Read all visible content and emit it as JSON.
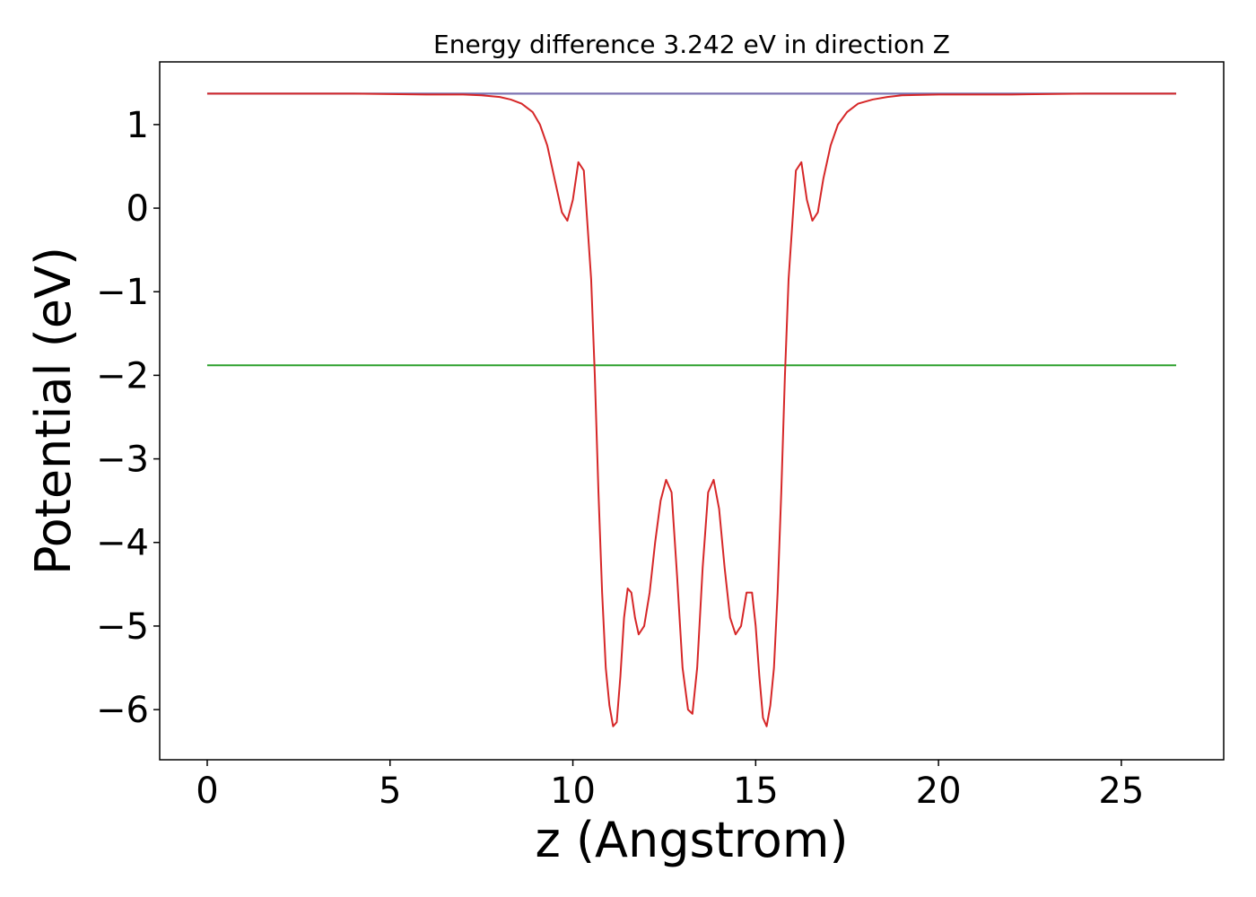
{
  "chart_data": {
    "type": "line",
    "title": "Energy difference 3.242 eV in direction Z",
    "xlabel": "z (Angstrom)",
    "ylabel": "Potential (eV)",
    "xlim": [
      -1.3,
      27.8
    ],
    "ylim": [
      -6.6,
      1.75
    ],
    "xticks": [
      0,
      5,
      10,
      15,
      20,
      25
    ],
    "xtick_labels": [
      "0",
      "5",
      "10",
      "15",
      "20",
      "25"
    ],
    "yticks": [
      1,
      0,
      -1,
      -2,
      -3,
      -4,
      -5,
      -6
    ],
    "ytick_labels": [
      "1",
      "0",
      "−1",
      "−2",
      "−3",
      "−4",
      "−5",
      "−6"
    ],
    "grid": false,
    "series": [
      {
        "color": "#1f77b4",
        "x": [
          0,
          26.5
        ],
        "y": [
          1.37,
          1.37
        ]
      },
      {
        "color": "#2ca02c",
        "x": [
          0,
          26.5
        ],
        "y": [
          -1.88,
          -1.88
        ]
      },
      {
        "color": "#7f6fb0",
        "x": [
          0,
          26.5
        ],
        "y": [
          1.37,
          1.37
        ]
      },
      {
        "color": "#d62728",
        "x": [
          0,
          2,
          4,
          6,
          7,
          7.5,
          8,
          8.3,
          8.6,
          8.9,
          9.1,
          9.3,
          9.5,
          9.7,
          9.85,
          10.0,
          10.15,
          10.3,
          10.4,
          10.5,
          10.6,
          10.7,
          10.8,
          10.9,
          11.0,
          11.1,
          11.2,
          11.3,
          11.4,
          11.5,
          11.6,
          11.7,
          11.8,
          11.95,
          12.1,
          12.25,
          12.4,
          12.55,
          12.7,
          12.85,
          13.0,
          13.15,
          13.27,
          13.4,
          13.55,
          13.7,
          13.85,
          14.0,
          14.15,
          14.3,
          14.45,
          14.6,
          14.75,
          14.9,
          15.0,
          15.1,
          15.2,
          15.3,
          15.4,
          15.5,
          15.6,
          15.7,
          15.8,
          15.9,
          16.0,
          16.1,
          16.25,
          16.4,
          16.55,
          16.7,
          16.85,
          17.05,
          17.25,
          17.5,
          17.8,
          18.2,
          18.6,
          19,
          20,
          22,
          24,
          26.5
        ],
        "y": [
          1.37,
          1.37,
          1.37,
          1.36,
          1.36,
          1.35,
          1.33,
          1.3,
          1.25,
          1.15,
          1.0,
          0.75,
          0.35,
          -0.05,
          -0.15,
          0.1,
          0.55,
          0.45,
          -0.2,
          -0.85,
          -2.0,
          -3.4,
          -4.6,
          -5.5,
          -5.95,
          -6.2,
          -6.15,
          -5.6,
          -4.9,
          -4.55,
          -4.6,
          -4.9,
          -5.1,
          -5.0,
          -4.6,
          -4.0,
          -3.5,
          -3.25,
          -3.4,
          -4.4,
          -5.5,
          -6.0,
          -6.05,
          -5.5,
          -4.3,
          -3.4,
          -3.25,
          -3.6,
          -4.3,
          -4.9,
          -5.1,
          -5.0,
          -4.6,
          -4.6,
          -5.0,
          -5.6,
          -6.1,
          -6.2,
          -5.95,
          -5.5,
          -4.6,
          -3.4,
          -2.0,
          -0.85,
          -0.2,
          0.45,
          0.55,
          0.1,
          -0.15,
          -0.05,
          0.35,
          0.75,
          1.0,
          1.15,
          1.25,
          1.3,
          1.33,
          1.35,
          1.36,
          1.36,
          1.37,
          1.37
        ]
      }
    ]
  }
}
